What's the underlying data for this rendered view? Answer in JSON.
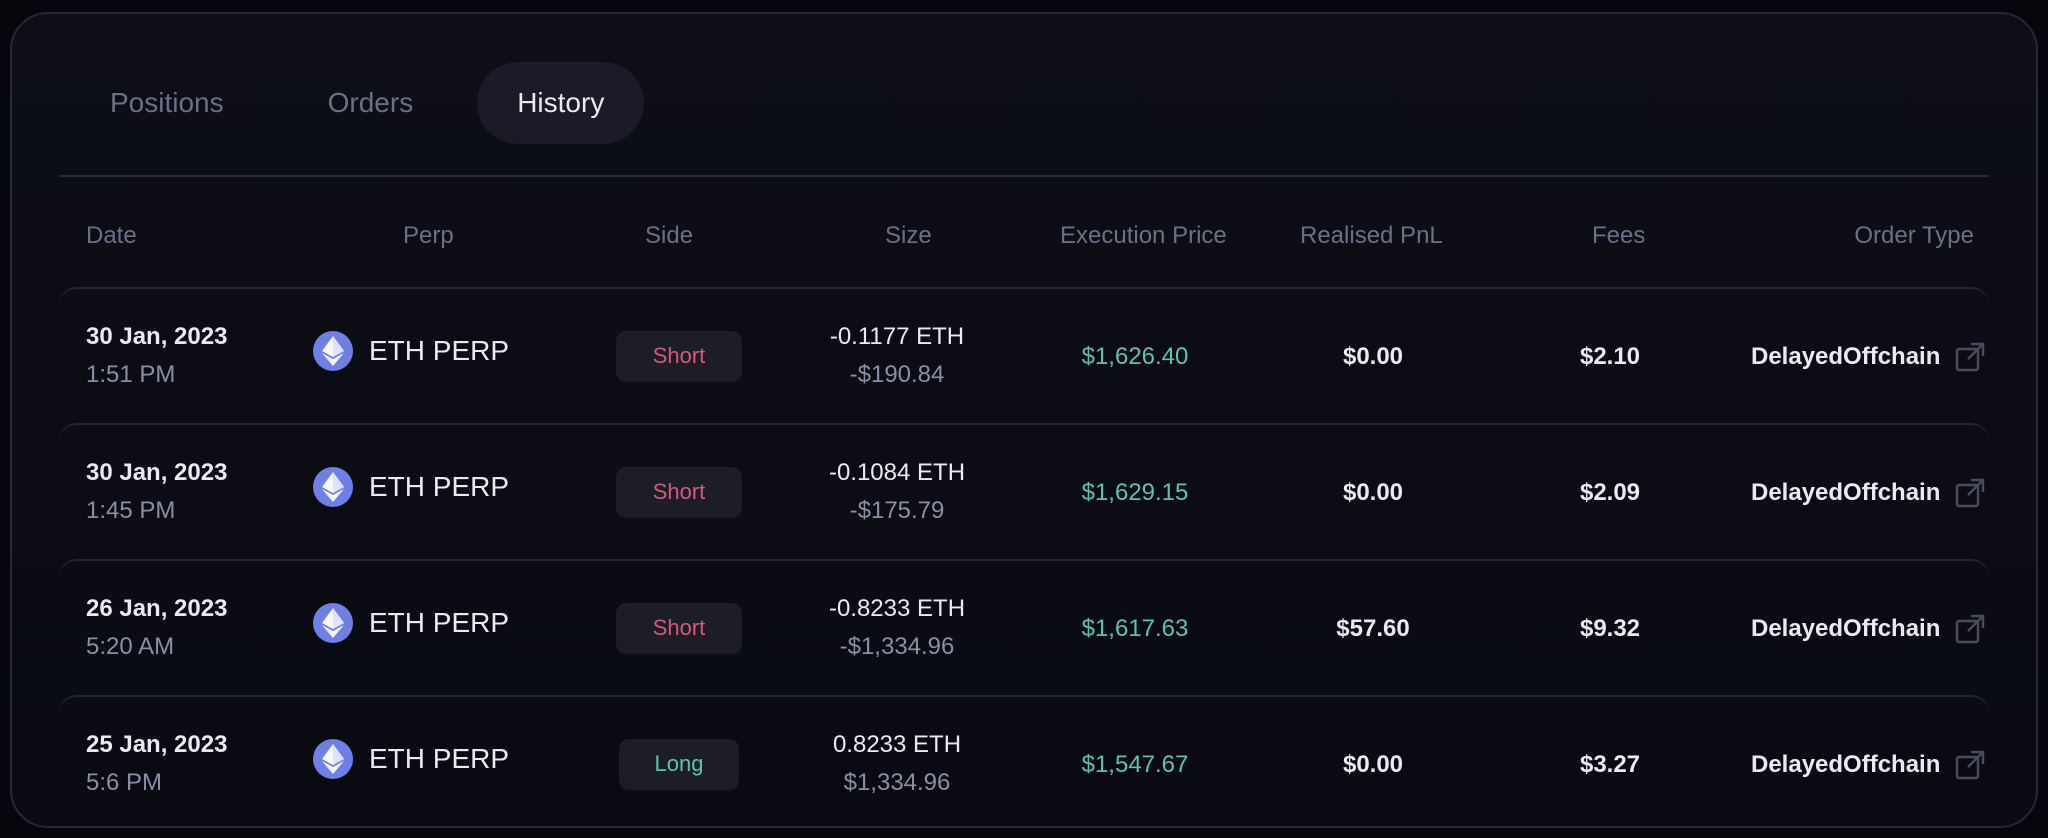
{
  "tabs": [
    {
      "label": "Positions",
      "active": false
    },
    {
      "label": "Orders",
      "active": false
    },
    {
      "label": "History",
      "active": true
    }
  ],
  "columns": {
    "date": "Date",
    "perp": "Perp",
    "side": "Side",
    "size": "Size",
    "execution_price": "Execution Price",
    "realised_pnl": "Realised PnL",
    "fees": "Fees",
    "order_type": "Order Type"
  },
  "rows": [
    {
      "date": "30 Jan, 2023",
      "time": "1:51 PM",
      "perp": "ETH PERP",
      "side": "Short",
      "size": "-0.1177 ETH",
      "size_usd": "-$190.84",
      "execution_price": "$1,626.40",
      "realised_pnl": "$0.00",
      "fees": "$2.10",
      "order_type": "DelayedOffchain"
    },
    {
      "date": "30 Jan, 2023",
      "time": "1:45 PM",
      "perp": "ETH PERP",
      "side": "Short",
      "size": "-0.1084 ETH",
      "size_usd": "-$175.79",
      "execution_price": "$1,629.15",
      "realised_pnl": "$0.00",
      "fees": "$2.09",
      "order_type": "DelayedOffchain"
    },
    {
      "date": "26 Jan, 2023",
      "time": "5:20 AM",
      "perp": "ETH PERP",
      "side": "Short",
      "size": "-0.8233 ETH",
      "size_usd": "-$1,334.96",
      "execution_price": "$1,617.63",
      "realised_pnl": "$57.60",
      "fees": "$9.32",
      "order_type": "DelayedOffchain"
    },
    {
      "date": "25 Jan, 2023",
      "time": "5:6 PM",
      "perp": "ETH PERP",
      "side": "Long",
      "size": "0.8233 ETH",
      "size_usd": "$1,334.96",
      "execution_price": "$1,547.67",
      "realised_pnl": "$0.00",
      "fees": "$3.27",
      "order_type": "DelayedOffchain"
    }
  ],
  "icons": {
    "perp_icon": "ethereum-icon",
    "order_link_icon": "external-link-icon"
  },
  "colors": {
    "short": "#d65a7d",
    "long": "#5fc2b0",
    "price": "#5fc2b0",
    "eth": "#6f7fe6"
  }
}
